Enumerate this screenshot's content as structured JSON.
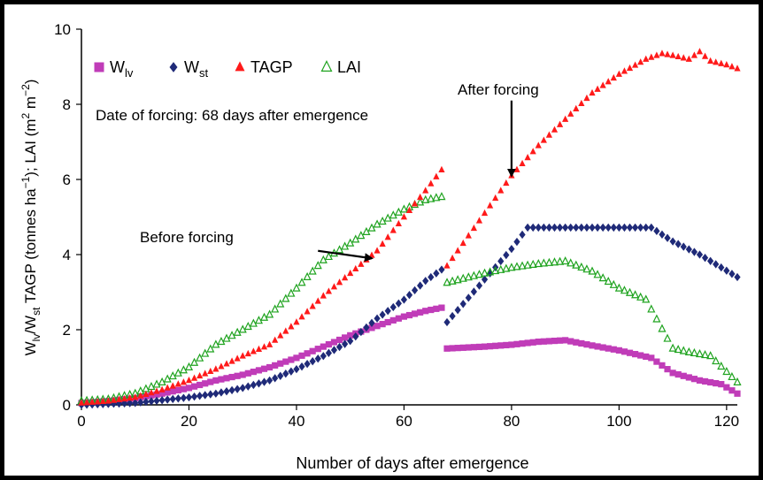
{
  "chart_data": {
    "type": "scatter",
    "xlabel": "Number of days after emergence",
    "ylabel_parts": {
      "w1": "W",
      "w1_sub": "lv",
      "slash": "/W",
      "w2_sub": "st",
      "mid": " TAGP (tonnes ha",
      "sup1": "−1",
      "mid2": "); LAI (m",
      "sup2": "2",
      "mid3": " m",
      "sup3": "−2",
      "end": ")"
    },
    "xlim": [
      0,
      122
    ],
    "ylim": [
      0,
      10
    ],
    "xticks": [
      "0",
      "20",
      "40",
      "60",
      "80",
      "100",
      "120"
    ],
    "yticks": [
      "0",
      "2",
      "4",
      "6",
      "8",
      "10"
    ],
    "legend": {
      "placement": "top-left",
      "items": [
        {
          "name": "W",
          "sub": "lv",
          "color": "#c03cb8",
          "marker": "square"
        },
        {
          "name": "W",
          "sub": "st",
          "color": "#1f2a78",
          "marker": "diamond"
        },
        {
          "name": "TAGP",
          "sub": "",
          "color": "#ff1a1a",
          "marker": "triangle"
        },
        {
          "name": "LAI",
          "sub": "",
          "color": "#1fa31f",
          "marker": "open-triangle"
        }
      ]
    },
    "annotations": {
      "forcing_date": "Date of forcing: 68 days after emergence",
      "before": "Before forcing",
      "after": "After forcing",
      "before_arrow": {
        "from": [
          44,
          4.1
        ],
        "to": [
          54,
          3.9
        ]
      },
      "after_arrow": {
        "from": [
          80,
          8.1
        ],
        "to": [
          80,
          6.1
        ]
      }
    },
    "series": [
      {
        "name": "Wlv",
        "segments": [
          [
            [
              0,
              0.05
            ],
            [
              5,
              0.1
            ],
            [
              10,
              0.18
            ],
            [
              15,
              0.3
            ],
            [
              20,
              0.45
            ],
            [
              25,
              0.65
            ],
            [
              30,
              0.8
            ],
            [
              35,
              1.0
            ],
            [
              40,
              1.25
            ],
            [
              45,
              1.55
            ],
            [
              50,
              1.85
            ],
            [
              55,
              2.1
            ],
            [
              60,
              2.35
            ],
            [
              64,
              2.5
            ],
            [
              67.5,
              2.6
            ]
          ],
          [
            [
              68,
              1.5
            ],
            [
              75,
              1.55
            ],
            [
              80,
              1.6
            ],
            [
              85,
              1.68
            ],
            [
              90,
              1.72
            ],
            [
              95,
              1.58
            ],
            [
              100,
              1.45
            ],
            [
              106,
              1.25
            ],
            [
              110,
              0.85
            ],
            [
              115,
              0.65
            ],
            [
              119,
              0.55
            ],
            [
              122,
              0.3
            ]
          ]
        ]
      },
      {
        "name": "Wst",
        "segments": [
          [
            [
              0,
              0.0
            ],
            [
              10,
              0.05
            ],
            [
              20,
              0.2
            ],
            [
              25,
              0.3
            ],
            [
              30,
              0.45
            ],
            [
              35,
              0.65
            ],
            [
              40,
              0.95
            ],
            [
              45,
              1.3
            ],
            [
              50,
              1.7
            ],
            [
              55,
              2.3
            ],
            [
              60,
              2.8
            ],
            [
              64,
              3.3
            ],
            [
              67.5,
              3.65
            ]
          ],
          [
            [
              68,
              2.2
            ],
            [
              72,
              2.85
            ],
            [
              76,
              3.5
            ],
            [
              80,
              4.15
            ],
            [
              83,
              4.72
            ],
            [
              90,
              4.72
            ],
            [
              100,
              4.72
            ],
            [
              106,
              4.72
            ],
            [
              110,
              4.35
            ],
            [
              115,
              4.0
            ],
            [
              122,
              3.4
            ]
          ]
        ]
      },
      {
        "name": "TAGP",
        "segments": [
          [
            [
              0,
              0.05
            ],
            [
              5,
              0.1
            ],
            [
              10,
              0.2
            ],
            [
              15,
              0.4
            ],
            [
              20,
              0.65
            ],
            [
              25,
              0.95
            ],
            [
              30,
              1.3
            ],
            [
              35,
              1.6
            ],
            [
              40,
              2.2
            ],
            [
              45,
              2.9
            ],
            [
              50,
              3.5
            ],
            [
              55,
              4.1
            ],
            [
              60,
              5.0
            ],
            [
              64,
              5.7
            ],
            [
              67.5,
              6.35
            ]
          ],
          [
            [
              68,
              3.7
            ],
            [
              72,
              4.5
            ],
            [
              76,
              5.3
            ],
            [
              80,
              6.1
            ],
            [
              85,
              6.9
            ],
            [
              90,
              7.6
            ],
            [
              95,
              8.3
            ],
            [
              100,
              8.8
            ],
            [
              105,
              9.2
            ],
            [
              108,
              9.35
            ],
            [
              110,
              9.3
            ],
            [
              113,
              9.2
            ],
            [
              115,
              9.4
            ],
            [
              117,
              9.15
            ],
            [
              120,
              9.05
            ],
            [
              122,
              8.95
            ]
          ]
        ]
      },
      {
        "name": "LAI",
        "segments": [
          [
            [
              0,
              0.1
            ],
            [
              5,
              0.15
            ],
            [
              10,
              0.3
            ],
            [
              15,
              0.6
            ],
            [
              20,
              1.0
            ],
            [
              25,
              1.6
            ],
            [
              30,
              2.0
            ],
            [
              35,
              2.4
            ],
            [
              40,
              3.1
            ],
            [
              45,
              3.85
            ],
            [
              50,
              4.3
            ],
            [
              55,
              4.8
            ],
            [
              60,
              5.2
            ],
            [
              64,
              5.45
            ],
            [
              67.5,
              5.55
            ]
          ],
          [
            [
              68,
              3.25
            ],
            [
              75,
              3.5
            ],
            [
              80,
              3.65
            ],
            [
              85,
              3.75
            ],
            [
              90,
              3.82
            ],
            [
              95,
              3.55
            ],
            [
              100,
              3.1
            ],
            [
              105,
              2.8
            ],
            [
              110,
              1.5
            ],
            [
              113,
              1.4
            ],
            [
              117,
              1.3
            ],
            [
              122,
              0.6
            ]
          ]
        ]
      }
    ]
  }
}
